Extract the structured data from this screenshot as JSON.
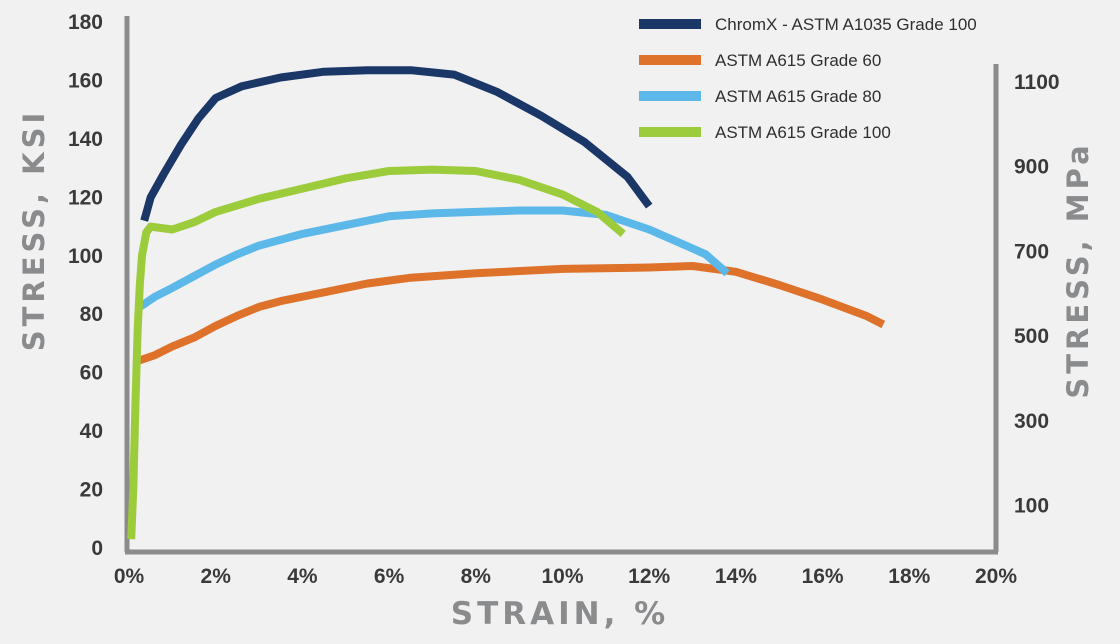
{
  "chart_data": {
    "type": "line",
    "xlabel": "STRAIN, %",
    "ylabel": "STRESS, KSI",
    "y2label": "STRESS, MPa",
    "xlim": [
      0,
      20
    ],
    "ylim": [
      0,
      180
    ],
    "x_ticks": [
      "0%",
      "2%",
      "4%",
      "6%",
      "8%",
      "10%",
      "12%",
      "14%",
      "16%",
      "18%",
      "20%"
    ],
    "y_ticks": [
      "0",
      "20",
      "40",
      "60",
      "80",
      "100",
      "120",
      "140",
      "160",
      "180"
    ],
    "y2_ticks": [
      "100",
      "300",
      "500",
      "700",
      "900",
      "1100"
    ],
    "legend_position": "top-right",
    "grid": false,
    "series": [
      {
        "name": "ChromX - ASTM A1035 Grade 100",
        "color": "#1b3768",
        "points": [
          [
            0.35,
            112
          ],
          [
            0.5,
            120
          ],
          [
            0.8,
            128
          ],
          [
            1.2,
            138
          ],
          [
            1.6,
            147
          ],
          [
            2.0,
            154
          ],
          [
            2.6,
            158
          ],
          [
            3.5,
            161
          ],
          [
            4.5,
            163
          ],
          [
            5.5,
            163.5
          ],
          [
            6.5,
            163.5
          ],
          [
            7.5,
            162
          ],
          [
            8.5,
            156
          ],
          [
            9.5,
            148
          ],
          [
            10.5,
            139
          ],
          [
            11.5,
            127
          ],
          [
            12.0,
            117
          ]
        ]
      },
      {
        "name": "ASTM A615 Grade 60",
        "color": "#de722b",
        "points": [
          [
            0.2,
            64
          ],
          [
            0.6,
            66
          ],
          [
            1.0,
            69
          ],
          [
            1.5,
            72
          ],
          [
            2.0,
            76
          ],
          [
            2.5,
            79.5
          ],
          [
            3.0,
            82.5
          ],
          [
            3.5,
            84.5
          ],
          [
            4.5,
            87.5
          ],
          [
            5.5,
            90.5
          ],
          [
            6.5,
            92.5
          ],
          [
            8.0,
            94
          ],
          [
            10.0,
            95.5
          ],
          [
            12.0,
            96
          ],
          [
            13.0,
            96.5
          ],
          [
            14.0,
            94.5
          ],
          [
            15.0,
            90
          ],
          [
            16.0,
            85
          ],
          [
            17.0,
            79.5
          ],
          [
            17.4,
            76.5
          ]
        ]
      },
      {
        "name": "ASTM A615 Grade 80",
        "color": "#5bb8e8",
        "points": [
          [
            0.2,
            82
          ],
          [
            0.6,
            86
          ],
          [
            1.0,
            89
          ],
          [
            1.5,
            93
          ],
          [
            2.0,
            97
          ],
          [
            2.5,
            100.5
          ],
          [
            3.0,
            103.5
          ],
          [
            4.0,
            107.5
          ],
          [
            5.0,
            110.5
          ],
          [
            6.0,
            113.5
          ],
          [
            7.0,
            114.5
          ],
          [
            8.0,
            115
          ],
          [
            9.0,
            115.5
          ],
          [
            10.0,
            115.5
          ],
          [
            11.0,
            114
          ],
          [
            12.0,
            109
          ],
          [
            13.0,
            102.5
          ],
          [
            13.3,
            100.5
          ],
          [
            13.8,
            94
          ]
        ]
      },
      {
        "name": "ASTM A615 Grade 100",
        "color": "#9ccb3b",
        "points": [
          [
            0.05,
            3
          ],
          [
            0.1,
            20
          ],
          [
            0.15,
            50
          ],
          [
            0.2,
            75
          ],
          [
            0.25,
            90
          ],
          [
            0.3,
            100
          ],
          [
            0.4,
            108
          ],
          [
            0.5,
            110
          ],
          [
            1.0,
            109
          ],
          [
            1.5,
            111.5
          ],
          [
            2.0,
            115
          ],
          [
            3.0,
            119.5
          ],
          [
            4.0,
            123
          ],
          [
            5.0,
            126.5
          ],
          [
            6.0,
            129
          ],
          [
            7.0,
            129.5
          ],
          [
            8.0,
            129
          ],
          [
            9.0,
            126
          ],
          [
            10.0,
            121
          ],
          [
            10.8,
            115
          ],
          [
            11.4,
            107.5
          ]
        ]
      }
    ]
  }
}
